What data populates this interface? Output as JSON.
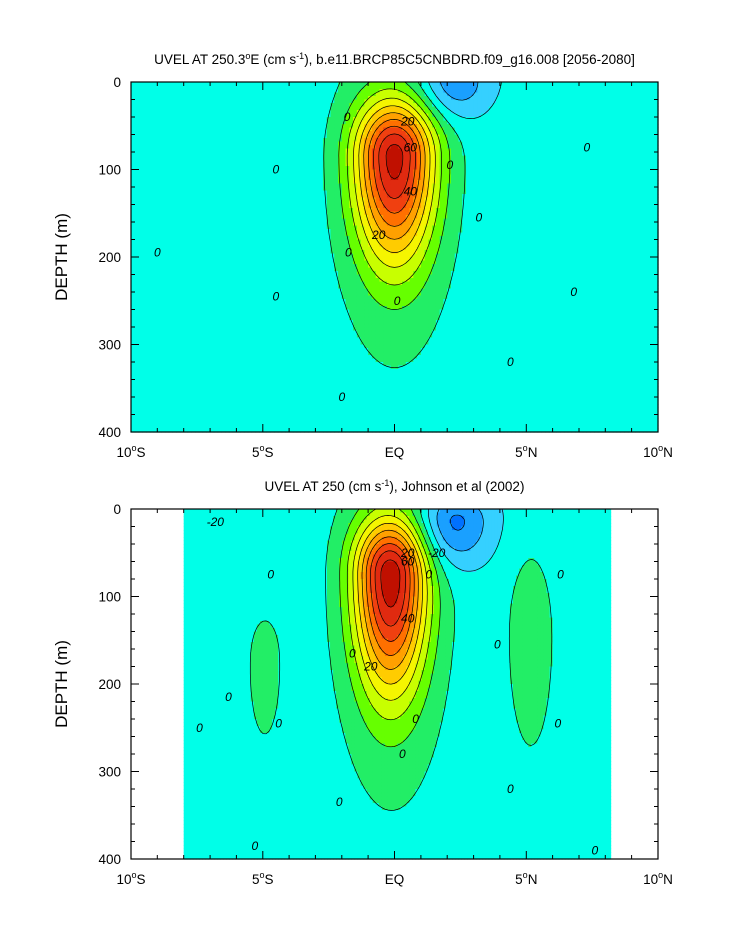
{
  "chart_data": [
    {
      "type": "contour",
      "title_prefix": "UVEL AT 250.3",
      "title_deg": "o",
      "title_mid": "E (cm s",
      "title_exp": "-1",
      "title_suffix": "), b.e11.BRCP85C5CNBDRD.f09_g16.008 [2056-2080]",
      "ylabel": "DEPTH (m)",
      "xlim": [
        -10,
        10
      ],
      "ylim": [
        400,
        0
      ],
      "x_ticks": [
        {
          "value": -10,
          "num": "10",
          "deg": "o",
          "hemi": "S"
        },
        {
          "value": -5,
          "num": "5",
          "deg": "o",
          "hemi": "S"
        },
        {
          "value": 0,
          "num": "EQ",
          "deg": "",
          "hemi": ""
        },
        {
          "value": 5,
          "num": "5",
          "deg": "o",
          "hemi": "N"
        },
        {
          "value": 10,
          "num": "10",
          "deg": "o",
          "hemi": "N"
        }
      ],
      "y_ticks": [
        "0",
        "100",
        "200",
        "300",
        "400"
      ],
      "y_tick_values": [
        0,
        100,
        200,
        300,
        400
      ],
      "contour_interval": 10,
      "levels": [
        -30,
        -20,
        -10,
        0,
        10,
        20,
        30,
        40,
        50,
        60,
        70,
        80,
        90,
        100
      ],
      "data_extent": [
        -10,
        10
      ],
      "features": [
        {
          "name": "equatorial-undercurrent",
          "lat": 0.0,
          "depth": 85,
          "peak": 95,
          "lat_width": 1.05,
          "depth_up": 45,
          "depth_down": 85
        },
        {
          "name": "surface-westward-flow",
          "lat": 2.2,
          "depth": 0,
          "peak": -25,
          "lat_width": 1.0,
          "depth_up": 20,
          "depth_down": 30
        },
        {
          "name": "ncc-jet",
          "lat": 5.3,
          "depth": 55,
          "peak": 6,
          "lat_width": 0.9,
          "depth_up": 40,
          "depth_down": 120
        }
      ],
      "contour_labels": [
        {
          "text": "0",
          "lat": -9.0,
          "depth": 195
        },
        {
          "text": "0",
          "lat": -4.5,
          "depth": 100
        },
        {
          "text": "0",
          "lat": -4.5,
          "depth": 245
        },
        {
          "text": "0",
          "lat": -1.8,
          "depth": 40
        },
        {
          "text": "0",
          "lat": -1.75,
          "depth": 195
        },
        {
          "text": "0",
          "lat": -2.0,
          "depth": 360
        },
        {
          "text": "0",
          "lat": 0.1,
          "depth": 250
        },
        {
          "text": "0",
          "lat": 2.1,
          "depth": 95
        },
        {
          "text": "0",
          "lat": 3.2,
          "depth": 155
        },
        {
          "text": "0",
          "lat": 4.4,
          "depth": 320
        },
        {
          "text": "0",
          "lat": 6.8,
          "depth": 240
        },
        {
          "text": "0",
          "lat": 7.3,
          "depth": 75
        },
        {
          "text": "20",
          "lat": 0.5,
          "depth": 45
        },
        {
          "text": "60",
          "lat": 0.6,
          "depth": 75
        },
        {
          "text": "40",
          "lat": 0.6,
          "depth": 125
        },
        {
          "text": "20",
          "lat": -0.6,
          "depth": 175
        }
      ]
    },
    {
      "type": "contour",
      "title_prefix": "UVEL AT 250 (cm s",
      "title_exp": "-1",
      "title_suffix": "), Johnson et al (2002)",
      "ylabel": "DEPTH (m)",
      "xlim": [
        -10,
        10
      ],
      "ylim": [
        400,
        0
      ],
      "x_ticks": [
        {
          "value": -10,
          "num": "10",
          "deg": "o",
          "hemi": "S"
        },
        {
          "value": -5,
          "num": "5",
          "deg": "o",
          "hemi": "S"
        },
        {
          "value": 0,
          "num": "EQ",
          "deg": "",
          "hemi": ""
        },
        {
          "value": 5,
          "num": "5",
          "deg": "o",
          "hemi": "N"
        },
        {
          "value": 10,
          "num": "10",
          "deg": "o",
          "hemi": "N"
        }
      ],
      "y_ticks": [
        "0",
        "100",
        "200",
        "300",
        "400"
      ],
      "y_tick_values": [
        0,
        100,
        200,
        300,
        400
      ],
      "contour_interval": 10,
      "levels": [
        -30,
        -20,
        -10,
        0,
        10,
        20,
        30,
        40,
        50,
        60,
        70,
        80,
        90,
        100
      ],
      "data_extent": [
        -8,
        8.2
      ],
      "features": [
        {
          "name": "equatorial-undercurrent",
          "lat": -0.15,
          "depth": 75,
          "peak": 98,
          "lat_width": 0.95,
          "depth_up": 45,
          "depth_down": 95
        },
        {
          "name": "surface-westward-flow",
          "lat": 2.2,
          "depth": 15,
          "peak": -30,
          "lat_width": 1.0,
          "depth_up": 25,
          "depth_down": 35
        },
        {
          "name": "scc-south",
          "lat": -5.0,
          "depth": 170,
          "peak": 8,
          "lat_width": 0.9,
          "depth_up": 80,
          "depth_down": 130
        },
        {
          "name": "ncc-jet",
          "lat": 5.2,
          "depth": 140,
          "peak": 13,
          "lat_width": 0.7,
          "depth_up": 80,
          "depth_down": 110
        }
      ],
      "contour_labels": [
        {
          "text": "-20",
          "lat": -6.8,
          "depth": 15
        },
        {
          "text": "-20",
          "lat": 1.6,
          "depth": 50
        },
        {
          "text": "0",
          "lat": -7.4,
          "depth": 250
        },
        {
          "text": "0",
          "lat": -5.3,
          "depth": 385
        },
        {
          "text": "0",
          "lat": -6.3,
          "depth": 215
        },
        {
          "text": "0",
          "lat": -4.7,
          "depth": 75
        },
        {
          "text": "0",
          "lat": -4.4,
          "depth": 245
        },
        {
          "text": "0",
          "lat": -2.1,
          "depth": 335
        },
        {
          "text": "0",
          "lat": -1.6,
          "depth": 165
        },
        {
          "text": "0",
          "lat": 1.3,
          "depth": 75
        },
        {
          "text": "0",
          "lat": 0.8,
          "depth": 240
        },
        {
          "text": "0",
          "lat": 0.3,
          "depth": 280
        },
        {
          "text": "0",
          "lat": 3.9,
          "depth": 155
        },
        {
          "text": "0",
          "lat": 4.4,
          "depth": 320
        },
        {
          "text": "0",
          "lat": 6.3,
          "depth": 75
        },
        {
          "text": "0",
          "lat": 6.2,
          "depth": 245
        },
        {
          "text": "0",
          "lat": 7.6,
          "depth": 390
        },
        {
          "text": "20",
          "lat": 0.5,
          "depth": 50
        },
        {
          "text": "60",
          "lat": 0.5,
          "depth": 60
        },
        {
          "text": "40",
          "lat": 0.5,
          "depth": 125
        },
        {
          "text": "20",
          "lat": -0.9,
          "depth": 180
        }
      ]
    }
  ],
  "colors": {
    "background": "#ffffff",
    "axis": "#000000",
    "contour_line": "#000000",
    "palette": [
      {
        "lo": -1000,
        "hi": -30,
        "color": "#0070ff"
      },
      {
        "lo": -30,
        "hi": -20,
        "color": "#1aa0ff"
      },
      {
        "lo": -20,
        "hi": -10,
        "color": "#35d0ff"
      },
      {
        "lo": -10,
        "hi": 0,
        "color": "#00ffe8"
      },
      {
        "lo": 0,
        "hi": 10,
        "color": "#22ee66"
      },
      {
        "lo": 10,
        "hi": 20,
        "color": "#66ff00"
      },
      {
        "lo": 20,
        "hi": 30,
        "color": "#c8ff00"
      },
      {
        "lo": 30,
        "hi": 40,
        "color": "#f5f500"
      },
      {
        "lo": 40,
        "hi": 50,
        "color": "#ffcc00"
      },
      {
        "lo": 50,
        "hi": 60,
        "color": "#ffa000"
      },
      {
        "lo": 60,
        "hi": 70,
        "color": "#ff7000"
      },
      {
        "lo": 70,
        "hi": 80,
        "color": "#f04010"
      },
      {
        "lo": 80,
        "hi": 90,
        "color": "#e02a10"
      },
      {
        "lo": 90,
        "hi": 1000,
        "color": "#c01000"
      }
    ]
  }
}
